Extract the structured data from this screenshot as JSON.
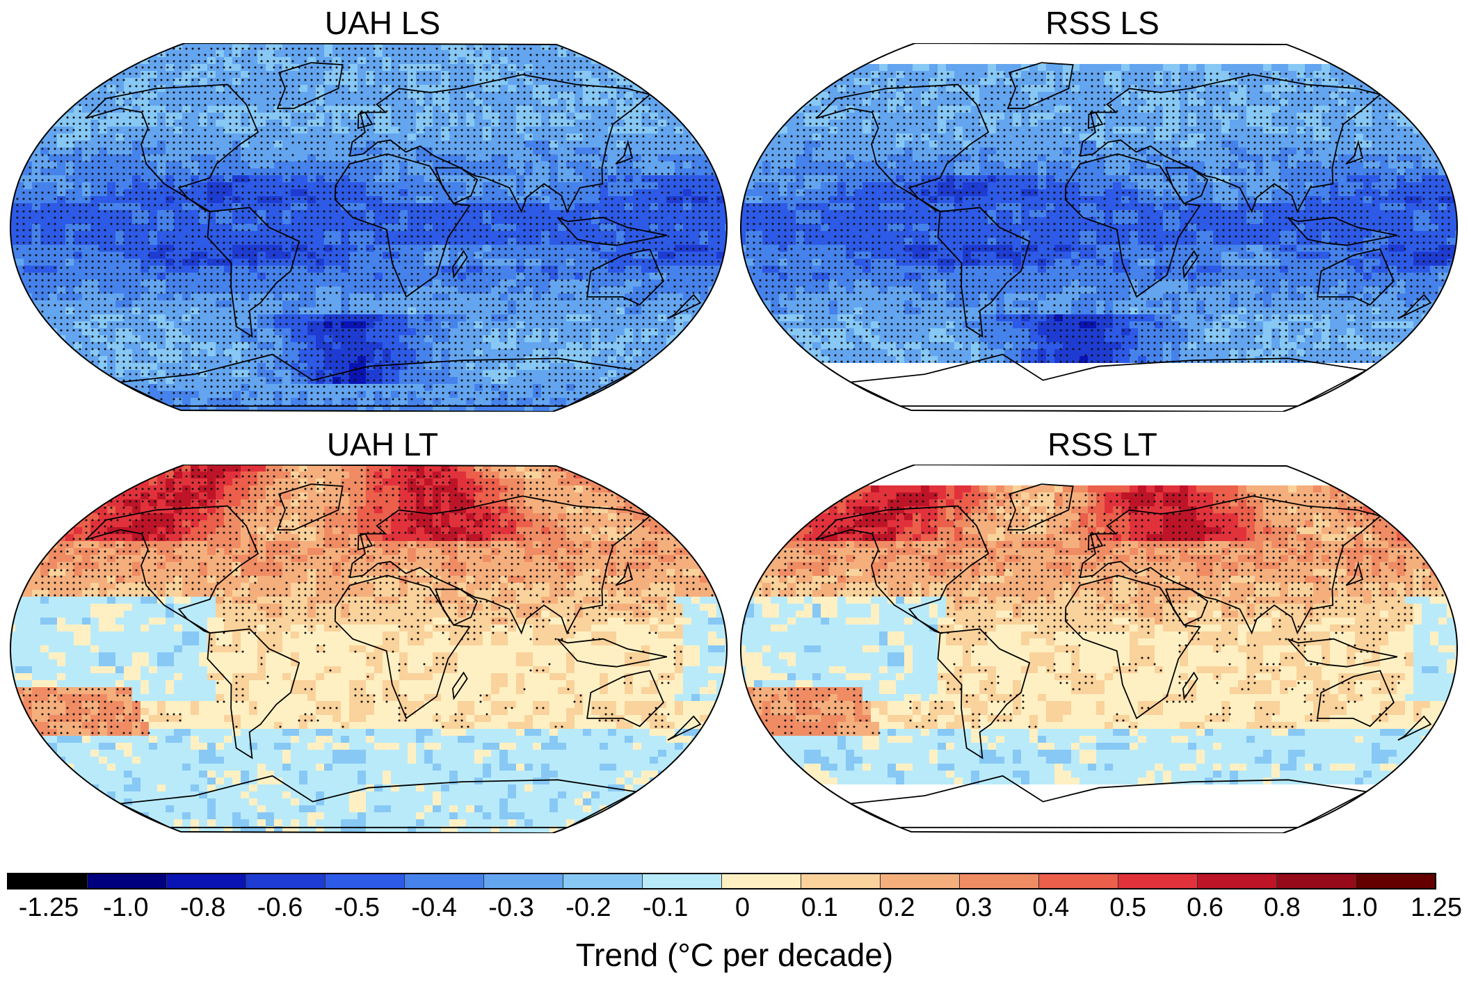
{
  "panels": [
    {
      "id": "uah-ls",
      "title": "UAH LS",
      "field": "ls",
      "missing": "none"
    },
    {
      "id": "rss-ls",
      "title": "RSS LS",
      "field": "ls",
      "missing": "poles"
    },
    {
      "id": "uah-lt",
      "title": "UAH LT",
      "field": "lt",
      "missing": "none"
    },
    {
      "id": "rss-lt",
      "title": "RSS LT",
      "field": "lt",
      "missing": "poles"
    }
  ],
  "colorbar": {
    "ticks": [
      "-1.25",
      "-1.0",
      "-0.8",
      "-0.6",
      "-0.5",
      "-0.4",
      "-0.3",
      "-0.2",
      "-0.1",
      "0",
      "0.1",
      "0.2",
      "0.3",
      "0.4",
      "0.5",
      "0.6",
      "0.8",
      "1.0",
      "1.25"
    ],
    "colors": [
      "#000000",
      "#00007f",
      "#0a14b4",
      "#1e3cd2",
      "#2d5ae6",
      "#4682eb",
      "#64a5f0",
      "#87c8f5",
      "#b9eafa",
      "#fff0c3",
      "#fad29b",
      "#f5af7d",
      "#f08c64",
      "#eb5f4b",
      "#e1323c",
      "#be1428",
      "#960a19",
      "#640000"
    ],
    "label": "Trend (°C per decade)"
  }
}
